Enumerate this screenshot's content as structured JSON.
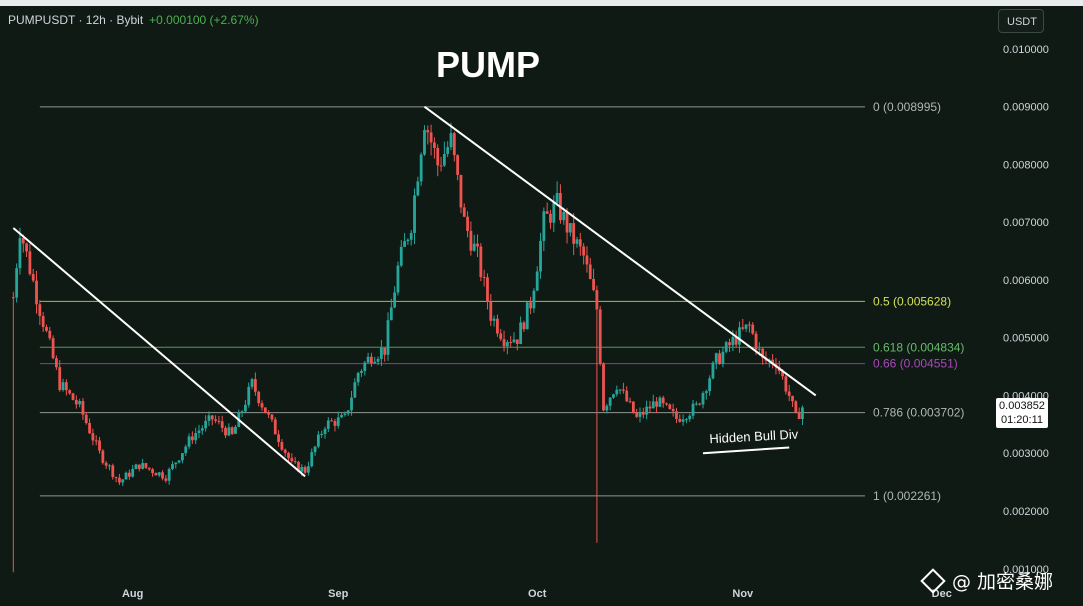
{
  "header": {
    "symbol": "PUMPUSDT · 12h · Bybit",
    "change": "+0.000100 (+2.67%)"
  },
  "unit_selector": "USDT",
  "colors": {
    "up": "#26a69a",
    "down": "#ef5350",
    "bg": "#0f1a14",
    "fib_05": "#d4e157",
    "fib_0618": "#66bb6a",
    "fib_066": "#ab47bc"
  },
  "chart_data": {
    "type": "candlestick",
    "title": "PUMP",
    "interval": "12h",
    "y_axis": {
      "ticks": [
        0.01,
        0.009,
        0.008,
        0.007,
        0.006,
        0.005,
        0.004,
        0.003,
        0.002,
        0.001
      ],
      "tick_labels": [
        "0.010000",
        "0.009000",
        "0.008000",
        "0.007000",
        "0.006000",
        "0.005000",
        "0.004000",
        "0.003000",
        "0.002000",
        "0.001000"
      ],
      "ylim": [
        0.00084,
        0.0105
      ]
    },
    "x_axis": {
      "tick_labels": [
        "Aug",
        "Sep",
        "Oct",
        "Nov",
        "Dec"
      ],
      "tick_dates": [
        "2025-08-01",
        "2025-09-01",
        "2025-10-01",
        "2025-11-01",
        "2025-12-01"
      ]
    },
    "fib_levels": [
      {
        "label": "0 (0.008995)",
        "value": 0.008995,
        "color": "#b0b6b2"
      },
      {
        "label": "0.5 (0.005628)",
        "value": 0.005628,
        "color": "#d4e157"
      },
      {
        "label": "0.618 (0.004834)",
        "value": 0.004834,
        "color": "#66bb6a"
      },
      {
        "label": "0.66 (0.004551)",
        "value": 0.004551,
        "color": "#ab47bc"
      },
      {
        "label": "0.786 (0.003702)",
        "value": 0.003702,
        "color": "#b0b6b2"
      },
      {
        "label": "1 (0.002261)",
        "value": 0.002261,
        "color": "#b0b6b2"
      }
    ],
    "last_price": "0.003852",
    "countdown": "01:20:11",
    "annotation": "Hidden Bull Div",
    "trendlines": [
      {
        "from": [
          "2025-07-14",
          0.0069
        ],
        "to": [
          "2025-08-27",
          0.0026
        ]
      },
      {
        "from": [
          "2025-09-14",
          0.009
        ],
        "to": [
          "2025-11-12",
          0.004
        ]
      }
    ],
    "bull_div_line": {
      "from": [
        "2025-10-26",
        0.003
      ],
      "to": [
        "2025-11-08",
        0.0031
      ]
    },
    "price_path": [
      [
        "2025-07-14",
        0.0057
      ],
      [
        "2025-07-15",
        0.0069
      ],
      [
        "2025-07-18",
        0.0055
      ],
      [
        "2025-07-21",
        0.0042
      ],
      [
        "2025-07-24",
        0.0038
      ],
      [
        "2025-07-27",
        0.003
      ],
      [
        "2025-07-30",
        0.0025
      ],
      [
        "2025-08-02",
        0.0028
      ],
      [
        "2025-08-06",
        0.0026
      ],
      [
        "2025-08-10",
        0.0033
      ],
      [
        "2025-08-13",
        0.0036
      ],
      [
        "2025-08-16",
        0.0033
      ],
      [
        "2025-08-19",
        0.0042
      ],
      [
        "2025-08-22",
        0.0035
      ],
      [
        "2025-08-25",
        0.0028
      ],
      [
        "2025-08-27",
        0.0027
      ],
      [
        "2025-08-30",
        0.0035
      ],
      [
        "2025-09-02",
        0.0036
      ],
      [
        "2025-09-04",
        0.0044
      ],
      [
        "2025-09-06",
        0.0047
      ],
      [
        "2025-09-08",
        0.0048
      ],
      [
        "2025-09-10",
        0.0062
      ],
      [
        "2025-09-12",
        0.007
      ],
      [
        "2025-09-14",
        0.0088
      ],
      [
        "2025-09-16",
        0.008
      ],
      [
        "2025-09-18",
        0.0084
      ],
      [
        "2025-09-20",
        0.007
      ],
      [
        "2025-09-22",
        0.0064
      ],
      [
        "2025-09-24",
        0.0054
      ],
      [
        "2025-09-26",
        0.005
      ],
      [
        "2025-09-28",
        0.005
      ],
      [
        "2025-09-30",
        0.0056
      ],
      [
        "2025-10-02",
        0.007
      ],
      [
        "2025-10-04",
        0.0073
      ],
      [
        "2025-10-06",
        0.0068
      ],
      [
        "2025-10-08",
        0.0064
      ],
      [
        "2025-10-10",
        0.0055
      ],
      [
        "2025-10-11",
        0.0038
      ],
      [
        "2025-10-13",
        0.0042
      ],
      [
        "2025-10-16",
        0.0036
      ],
      [
        "2025-10-19",
        0.0039
      ],
      [
        "2025-10-22",
        0.0036
      ],
      [
        "2025-10-25",
        0.0038
      ],
      [
        "2025-10-28",
        0.0046
      ],
      [
        "2025-10-31",
        0.005
      ],
      [
        "2025-11-02",
        0.0052
      ],
      [
        "2025-11-04",
        0.0046
      ],
      [
        "2025-11-06",
        0.0046
      ],
      [
        "2025-11-08",
        0.004
      ],
      [
        "2025-11-09",
        0.0036
      ],
      [
        "2025-11-10",
        0.0038
      ]
    ],
    "wicks": [
      {
        "date": "2025-07-14",
        "low": 0.00094
      },
      {
        "date": "2025-10-10",
        "low": 0.00145
      }
    ]
  },
  "watermark": "@ 加密桑娜"
}
